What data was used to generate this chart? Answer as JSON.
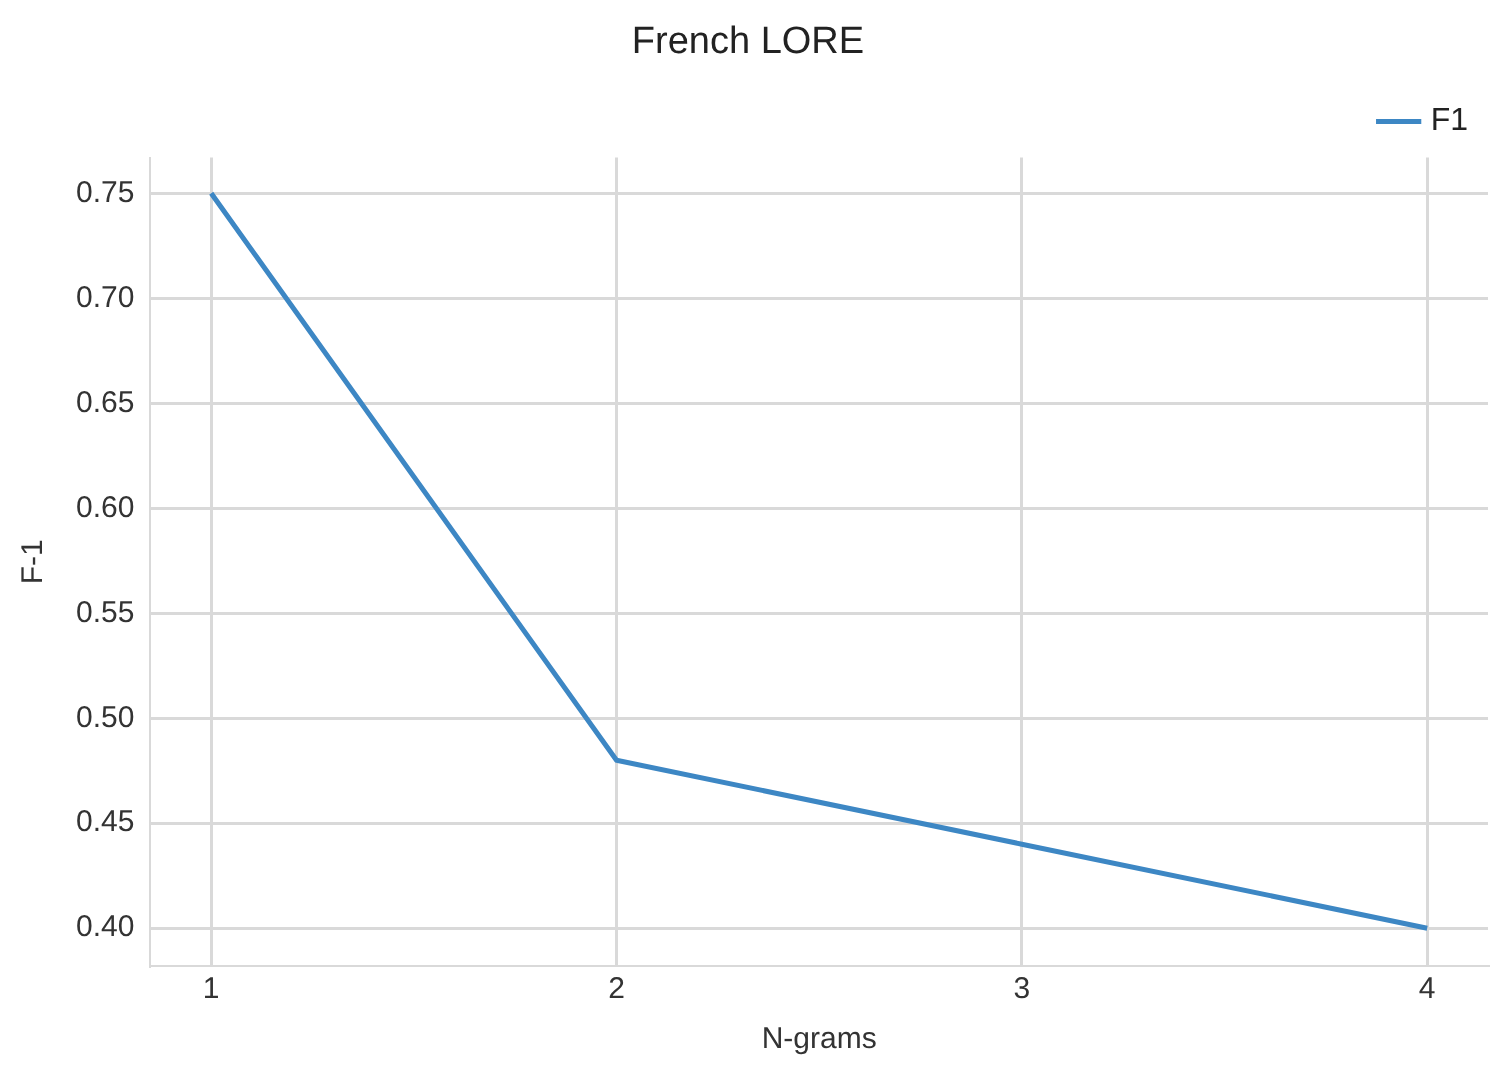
{
  "chart_data": {
    "type": "line",
    "title": "French LORE",
    "xlabel": "N-grams",
    "ylabel": "F-1",
    "x": [
      1,
      2,
      3,
      4
    ],
    "series": [
      {
        "name": "F1",
        "color": "#3d87c4",
        "values": [
          0.75,
          0.48,
          0.44,
          0.4
        ]
      }
    ],
    "xlim": [
      0.85,
      4.15
    ],
    "xticks": [
      1,
      2,
      3,
      4
    ],
    "ylim": [
      0.382,
      0.767
    ],
    "yticks": [
      {
        "value": 0.4,
        "label": "0.40"
      },
      0.45,
      {
        "value": 0.5,
        "label": "0.50"
      },
      0.55,
      {
        "value": 0.6,
        "label": "0.60"
      },
      0.65,
      {
        "value": 0.7,
        "label": "0.70"
      },
      0.75
    ],
    "grid": true,
    "legend": "top right",
    "marker": "none",
    "line_style": "solid"
  }
}
